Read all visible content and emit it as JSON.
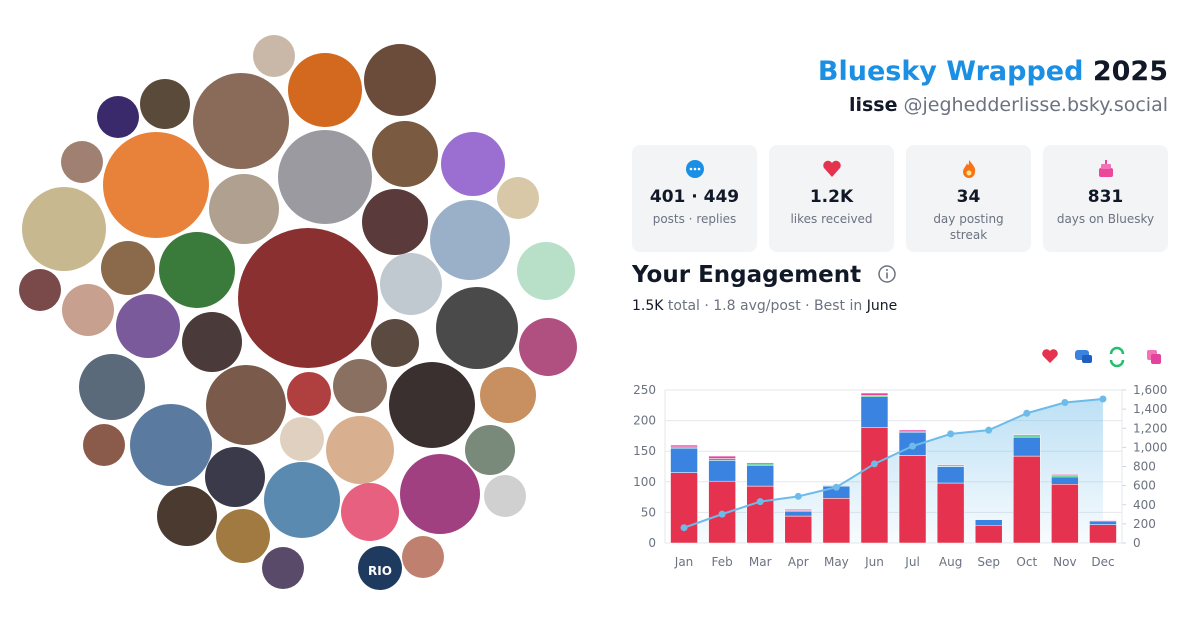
{
  "header": {
    "title": "Bluesky Wrapped",
    "year": "2025",
    "display_name": "lisse",
    "handle": "@jeghedderlisse.bsky.social"
  },
  "stats": [
    {
      "value": "401 · 449",
      "label": "posts · replies"
    },
    {
      "value": "1.2K",
      "label": "likes received"
    },
    {
      "value": "34",
      "label": "day posting streak"
    },
    {
      "value": "831",
      "label": "days on Bluesky"
    }
  ],
  "engagement": {
    "title": "Your Engagement",
    "total": "1.5K",
    "summary": "total · 1.8 avg/post · Best in",
    "best": "June"
  },
  "collage_text": "RIO",
  "chart_data": {
    "type": "bar",
    "categories": [
      "Jan",
      "Feb",
      "Mar",
      "Apr",
      "May",
      "Jun",
      "Jul",
      "Aug",
      "Sep",
      "Oct",
      "Nov",
      "Dec"
    ],
    "series": [
      {
        "color": "#e5334f",
        "values": [
          115,
          101,
          93,
          44,
          73,
          189,
          143,
          98,
          29,
          142,
          96,
          30
        ]
      },
      {
        "color": "#3b83e0",
        "values": [
          40,
          34,
          34,
          8,
          20,
          50,
          38,
          27,
          9,
          31,
          12,
          6
        ]
      },
      {
        "color": "#22c06b",
        "values": [
          2,
          3,
          2,
          1,
          1,
          2,
          2,
          1,
          0,
          2,
          2,
          0
        ]
      },
      {
        "color": "#e4429c",
        "values": [
          3,
          4,
          2,
          2,
          1,
          4,
          2,
          2,
          1,
          2,
          2,
          1
        ]
      },
      {
        "type": "line",
        "axis": "y2",
        "color": "#6cbbe8",
        "values": [
          160,
          302,
          433,
          488,
          583,
          828,
          1013,
          1141,
          1180,
          1357,
          1469,
          1506
        ]
      }
    ],
    "stacked": true,
    "ylim": [
      0,
      250
    ],
    "yticks": [
      0,
      50,
      100,
      150,
      200,
      250
    ],
    "y2lim": [
      0,
      1600
    ],
    "y2ticks": [
      0,
      200,
      400,
      600,
      800,
      {
        "value": 1000,
        "label": "1,000"
      },
      {
        "value": 1200,
        "label": "1,200"
      },
      {
        "value": 1400,
        "label": "1,400"
      },
      {
        "value": 1600,
        "label": "1,600"
      }
    ],
    "grid": true
  }
}
